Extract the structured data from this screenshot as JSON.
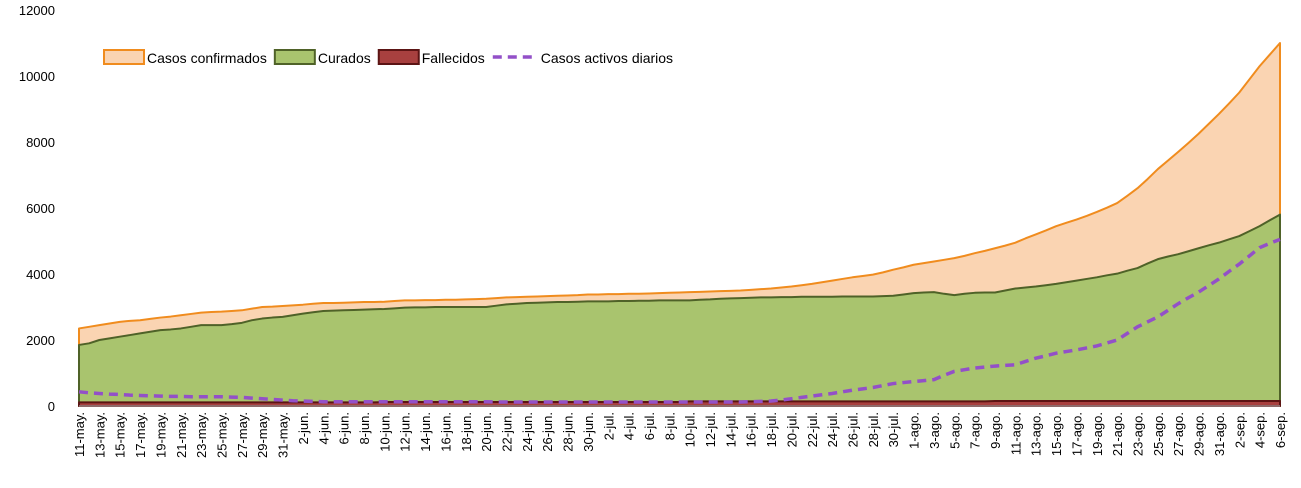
{
  "chart_data": {
    "type": "area",
    "categories": [
      "11-may.",
      null,
      "13-may.",
      null,
      "15-may.",
      null,
      "17-may.",
      null,
      "19-may.",
      null,
      "21-may.",
      null,
      "23-may.",
      null,
      "25-may.",
      null,
      "27-may.",
      null,
      "29-may.",
      null,
      "31-may.",
      null,
      "2-jun.",
      null,
      "4-jun.",
      null,
      "6-jun.",
      null,
      "8-jun.",
      null,
      "10-jun.",
      null,
      "12-jun.",
      null,
      "14-jun.",
      null,
      "16-jun.",
      null,
      "18-jun.",
      null,
      "20-jun.",
      null,
      "22-jun.",
      null,
      "24-jun.",
      null,
      "26-jun.",
      null,
      "28-jun.",
      null,
      "30-jun.",
      null,
      "2-jul.",
      null,
      "4-jul.",
      null,
      "6-jul.",
      null,
      "8-jul.",
      null,
      "10-jul.",
      null,
      "12-jul.",
      null,
      "14-jul.",
      null,
      "16-jul.",
      null,
      "18-jul.",
      null,
      "20-jul.",
      null,
      "22-jul.",
      null,
      "24-jul.",
      null,
      "26-jul.",
      null,
      "28-jul.",
      null,
      "30-jul.",
      null,
      "1-ago.",
      null,
      "3-ago.",
      null,
      "5-ago.",
      null,
      "7-ago.",
      null,
      "9-ago.",
      null,
      "11-ago.",
      null,
      "13-ago.",
      null,
      "15-ago.",
      null,
      "17-ago.",
      null,
      "19-ago.",
      null,
      "21-ago.",
      null,
      "23-ago.",
      null,
      "25-ago.",
      null,
      "27-ago.",
      null,
      "29-ago.",
      null,
      "31-ago.",
      null,
      "2-sep.",
      null,
      "4-sep.",
      null,
      "6-sep."
    ],
    "series": [
      {
        "name": "Casos confirmados",
        "type": "area",
        "color": "#fad4b2",
        "line_color": "#f08c1e",
        "values": [
          2350,
          2400,
          2450,
          2500,
          2550,
          2580,
          2600,
          2640,
          2680,
          2710,
          2750,
          2790,
          2830,
          2850,
          2860,
          2880,
          2900,
          2950,
          3000,
          3010,
          3030,
          3050,
          3070,
          3100,
          3120,
          3120,
          3130,
          3140,
          3150,
          3150,
          3160,
          3180,
          3200,
          3200,
          3210,
          3210,
          3220,
          3220,
          3230,
          3240,
          3250,
          3270,
          3290,
          3300,
          3310,
          3320,
          3330,
          3340,
          3350,
          3360,
          3380,
          3380,
          3390,
          3390,
          3400,
          3400,
          3410,
          3420,
          3430,
          3440,
          3450,
          3460,
          3470,
          3480,
          3490,
          3500,
          3520,
          3540,
          3560,
          3590,
          3620,
          3660,
          3700,
          3750,
          3800,
          3850,
          3900,
          3940,
          3980,
          4050,
          4130,
          4200,
          4280,
          4330,
          4380,
          4430,
          4480,
          4550,
          4630,
          4700,
          4780,
          4860,
          4950,
          5080,
          5200,
          5320,
          5450,
          5550,
          5650,
          5760,
          5880,
          6010,
          6150,
          6370,
          6600,
          6880,
          7180,
          7440,
          7700,
          7970,
          8250,
          8550,
          8850,
          9170,
          9500,
          9900,
          10300,
          10650,
          11000
        ]
      },
      {
        "name": "Curados",
        "type": "area",
        "color": "#a9c46e",
        "line_color": "#4f6228",
        "values": [
          1850,
          1900,
          2000,
          2050,
          2100,
          2150,
          2200,
          2250,
          2300,
          2320,
          2350,
          2400,
          2450,
          2450,
          2450,
          2480,
          2520,
          2600,
          2650,
          2680,
          2700,
          2750,
          2800,
          2840,
          2880,
          2890,
          2900,
          2910,
          2920,
          2930,
          2940,
          2960,
          2980,
          2990,
          2990,
          3000,
          3000,
          3000,
          3000,
          3000,
          3000,
          3040,
          3080,
          3100,
          3120,
          3130,
          3140,
          3150,
          3150,
          3160,
          3170,
          3170,
          3170,
          3180,
          3180,
          3190,
          3190,
          3200,
          3200,
          3200,
          3200,
          3220,
          3230,
          3250,
          3260,
          3270,
          3280,
          3290,
          3290,
          3300,
          3300,
          3310,
          3310,
          3310,
          3310,
          3320,
          3320,
          3320,
          3320,
          3330,
          3340,
          3380,
          3420,
          3440,
          3450,
          3400,
          3360,
          3400,
          3430,
          3440,
          3440,
          3500,
          3560,
          3590,
          3620,
          3660,
          3700,
          3750,
          3800,
          3850,
          3900,
          3960,
          4010,
          4100,
          4180,
          4320,
          4450,
          4530,
          4600,
          4690,
          4780,
          4870,
          4950,
          5050,
          5150,
          5300,
          5450,
          5630,
          5800
        ]
      },
      {
        "name": "Fallecidos",
        "type": "area",
        "color": "#a8403f",
        "line_color": "#5c1414",
        "values": [
          110,
          110,
          110,
          110,
          110,
          110,
          110,
          110,
          110,
          110,
          110,
          110,
          110,
          110,
          110,
          110,
          110,
          110,
          110,
          110,
          110,
          110,
          110,
          110,
          110,
          110,
          110,
          110,
          110,
          110,
          120,
          120,
          120,
          120,
          120,
          120,
          120,
          120,
          120,
          120,
          120,
          120,
          120,
          120,
          120,
          120,
          120,
          120,
          120,
          120,
          120,
          120,
          120,
          120,
          120,
          120,
          120,
          120,
          120,
          120,
          140,
          140,
          140,
          140,
          140,
          140,
          140,
          140,
          140,
          140,
          140,
          140,
          140,
          140,
          140,
          140,
          140,
          140,
          140,
          140,
          140,
          140,
          140,
          140,
          140,
          140,
          140,
          140,
          140,
          140,
          150,
          150,
          150,
          150,
          150,
          150,
          150,
          150,
          150,
          150,
          150,
          150,
          150,
          150,
          150,
          150,
          150,
          150,
          150,
          150,
          150,
          150,
          150,
          150,
          150,
          150,
          150,
          150,
          150
        ]
      },
      {
        "name": "Casos activos diarios",
        "type": "line",
        "color": "#9350c8",
        "values": [
          430,
          400,
          380,
          360,
          350,
          330,
          320,
          310,
          300,
          290,
          290,
          280,
          280,
          280,
          280,
          270,
          260,
          240,
          220,
          200,
          180,
          160,
          150,
          140,
          130,
          130,
          130,
          130,
          130,
          130,
          130,
          130,
          130,
          130,
          130,
          130,
          130,
          130,
          130,
          130,
          130,
          120,
          120,
          120,
          120,
          120,
          120,
          120,
          120,
          120,
          120,
          120,
          120,
          120,
          120,
          120,
          120,
          120,
          120,
          120,
          120,
          120,
          120,
          120,
          120,
          120,
          130,
          140,
          150,
          180,
          220,
          260,
          300,
          340,
          380,
          430,
          480,
          520,
          560,
          620,
          680,
          710,
          740,
          770,
          800,
          930,
          1050,
          1100,
          1150,
          1180,
          1210,
          1230,
          1250,
          1350,
          1450,
          1520,
          1600,
          1650,
          1700,
          1760,
          1820,
          1910,
          2000,
          2200,
          2400,
          2550,
          2700,
          2900,
          3100,
          3280,
          3450,
          3650,
          3850,
          4080,
          4300,
          4550,
          4800,
          4930,
          5050
        ]
      }
    ],
    "ylim": [
      0,
      12000
    ],
    "yticks": [
      0,
      2000,
      4000,
      6000,
      8000,
      10000,
      12000
    ]
  }
}
